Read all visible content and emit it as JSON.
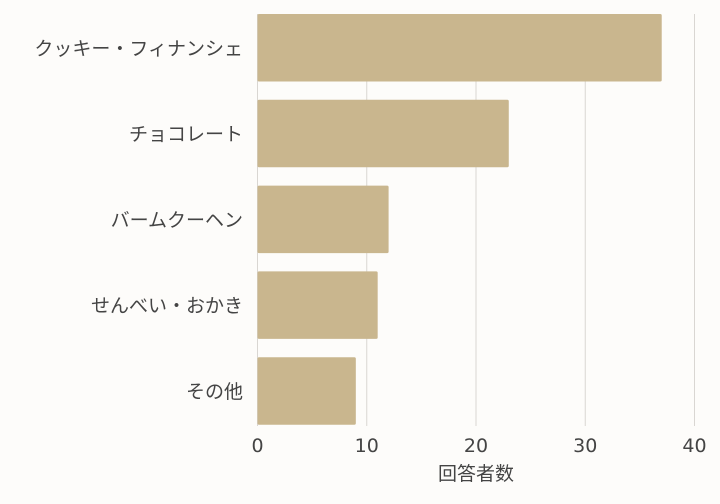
{
  "chart_data": {
    "type": "bar",
    "orientation": "horizontal",
    "categories": [
      "クッキー・フィナンシェ",
      "チョコレート",
      "バームクーヘン",
      "せんべい・おかき",
      "その他"
    ],
    "values": [
      37,
      23,
      12,
      11,
      9
    ],
    "title": "",
    "xlabel": "回答者数",
    "ylabel": "",
    "xlim": [
      0,
      40
    ],
    "xticks": [
      0,
      10,
      20,
      30,
      40
    ],
    "grid": "vertical",
    "colors": {
      "bar": "#c9b68e",
      "grid": "#d9d6d2",
      "text": "#444444",
      "background": "#fdfcfa"
    }
  }
}
